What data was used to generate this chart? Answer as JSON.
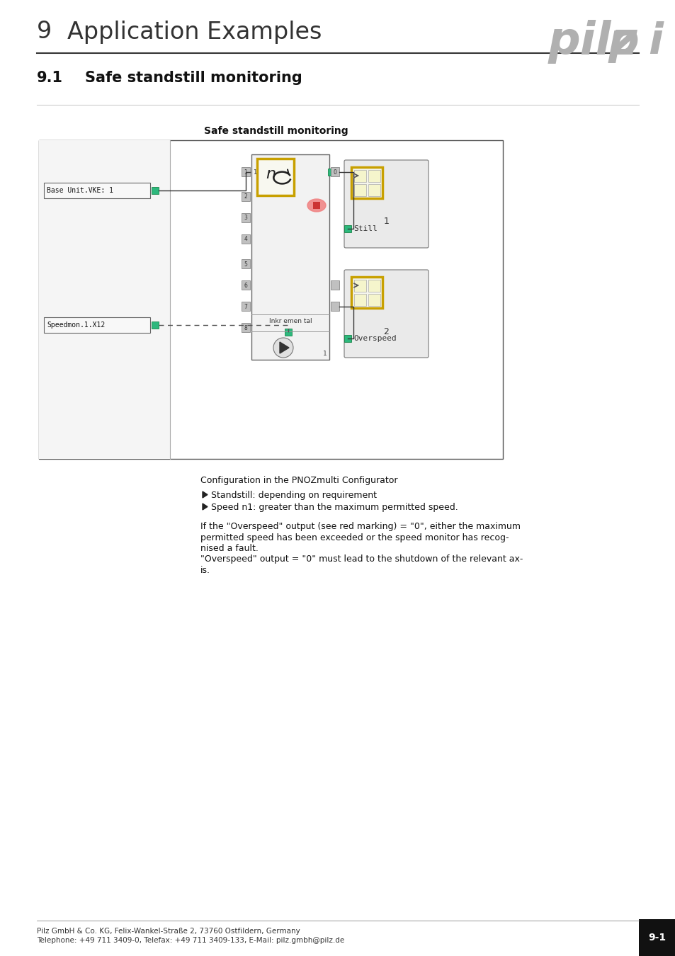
{
  "page_title_num": "9",
  "page_title_text": "Application Examples",
  "section_num": "9.1",
  "section_text": "Safe standstill monitoring",
  "diagram_title": "Safe standstill monitoring",
  "config_header": "Configuration in the PNOZmulti Configurator",
  "bullet1": "Standstill: depending on requirement",
  "bullet2": "Speed n1: greater than the maximum permitted speed.",
  "body_text_lines": [
    "If the \"Overspeed\" output (see red marking) = \"0\", either the maximum",
    "permitted speed has been exceeded or the speed monitor has recog-",
    "nised a fault.",
    "\"Overspeed\" output = \"0\" must lead to the shutdown of the relevant ax-",
    "is."
  ],
  "footer_left1": "Pilz GmbH & Co. KG, Felix-Wankel-Straße 2, 73760 Ostfildern, Germany",
  "footer_left2": "Telephone: +49 711 3409-0, Telefax: +49 711 3409-133, E-Mail: pilz.gmbh@pilz.de",
  "footer_right": "9-1",
  "bg_color": "#ffffff",
  "gold_border": "#c8a000",
  "green_color": "#2db87d",
  "red_pink": "#f08080",
  "pilz_gray": "#b0b0b0",
  "module_bg": "#f0f0f0",
  "left_panel_bg": "#f5f5f5",
  "box_edge": "#888888",
  "rb_bg": "#e8e8e8",
  "rb_icon_inner": "#f5f5cc",
  "dark_gray_sq": "#888888"
}
